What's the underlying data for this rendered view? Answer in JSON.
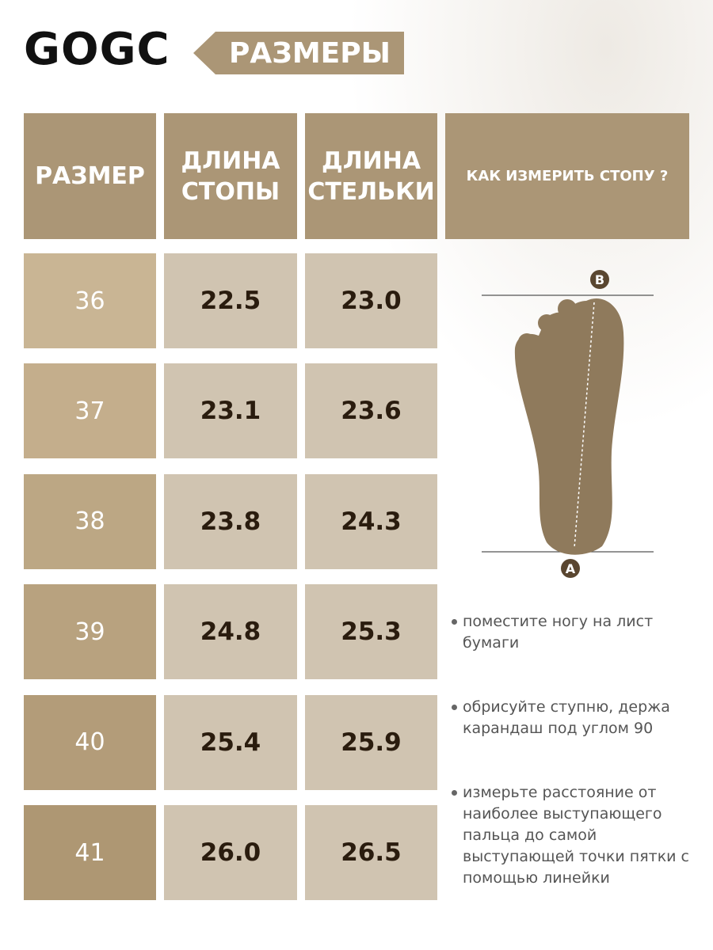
{
  "header": {
    "brand": "GOGC",
    "tag": "РАЗМЕРЫ"
  },
  "table": {
    "columns": [
      "РАЗМЕР",
      "ДЛИНА СТОПЫ",
      "ДЛИНА СТЕЛЬКИ",
      "КАК ИЗМЕРИТЬ СТОПУ ?"
    ],
    "rows": [
      [
        "36",
        "22.5",
        "23.0"
      ],
      [
        "37",
        "23.1",
        "23.6"
      ],
      [
        "38",
        "23.8",
        "24.3"
      ],
      [
        "39",
        "24.8",
        "25.3"
      ],
      [
        "40",
        "25.4",
        "25.9"
      ],
      [
        "41",
        "26.0",
        "26.5"
      ]
    ]
  },
  "diagram": {
    "top_label": "B",
    "bottom_label": "A"
  },
  "instructions": [
    "поместите ногу на лист бумаги",
    "обрисуйте ступню, держа карандаш под углом 90",
    "измерьте расстояние от наиболее выступающего пальца до самой выступающей точки пятки с помощью линейки"
  ]
}
